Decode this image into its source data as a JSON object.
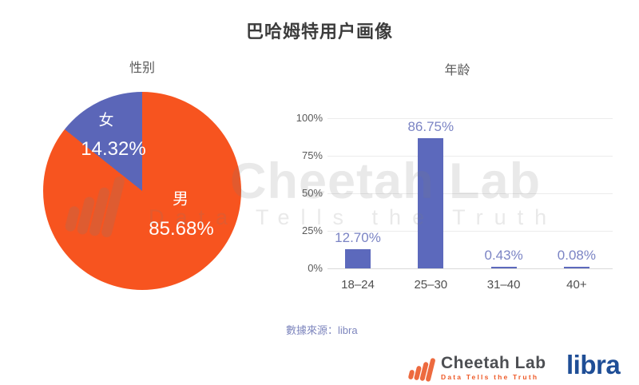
{
  "title": "巴哈姆特用户画像",
  "chart_data": [
    {
      "type": "pie",
      "title": "性别",
      "labels": [
        "女",
        "男"
      ],
      "values": [
        14.32,
        85.68
      ],
      "value_labels": [
        "14.32%",
        "85.68%"
      ],
      "colors": [
        "#5b66b8",
        "#f7541f"
      ],
      "start_at_top_sweep_ccw_first_slice": true
    },
    {
      "type": "bar",
      "title": "年龄",
      "categories": [
        "18–24",
        "25–30",
        "31–40",
        "40+"
      ],
      "values": [
        12.7,
        86.75,
        0.43,
        0.08
      ],
      "value_labels": [
        "12.70%",
        "86.75%",
        "0.43%",
        "0.08%"
      ],
      "yticks": [
        "0%",
        "25%",
        "50%",
        "75%",
        "100%"
      ],
      "ylim": [
        0,
        100
      ],
      "bar_color": "#5c69bc",
      "grid": true,
      "legend": "none"
    }
  ],
  "footer": {
    "source": "數據來源：libra",
    "cheetah_name": "Cheetah Lab",
    "cheetah_tagline": "Data Tells the Truth",
    "libra": "libra"
  },
  "watermark": {
    "line1": "Cheetah Lab",
    "line2": "Data Tells the Truth"
  },
  "colors": {
    "pie_female": "#5b66b8",
    "pie_male": "#f7541f",
    "bar": "#5c69bc",
    "bar_value_label": "#7b84c4",
    "axis_text": "#595959",
    "gridline": "#ececec",
    "title_text": "#3c3c3c",
    "source_text": "#7d85bd",
    "cheetah_orange": "#ed6a3f",
    "libra_blue": "#1f4e96"
  }
}
